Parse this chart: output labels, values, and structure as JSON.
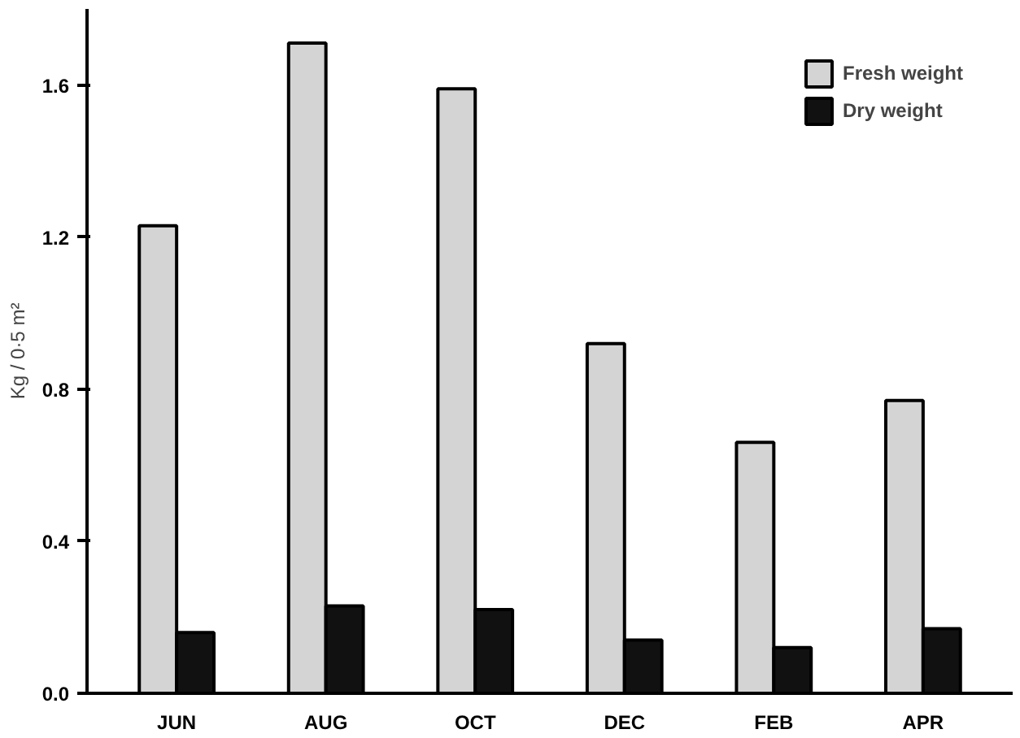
{
  "chart_data": {
    "type": "bar",
    "ylabel": "Kg / 0·5 m²",
    "categories": [
      "JUN",
      "AUG",
      "OCT",
      "DEC",
      "FEB",
      "APR"
    ],
    "series": [
      {
        "name": "Fresh weight",
        "color": "#d4d4d4",
        "values": [
          1.23,
          1.71,
          1.59,
          0.92,
          0.66,
          0.77
        ]
      },
      {
        "name": "Dry weight",
        "color": "#111111",
        "values": [
          0.16,
          0.23,
          0.22,
          0.14,
          0.12,
          0.17
        ]
      }
    ],
    "ylim": [
      0,
      1.8
    ],
    "yticks": [
      {
        "value": 0,
        "label": "0.0"
      },
      0.4,
      0.8,
      1.2,
      1.6
    ],
    "grid": false,
    "legend": "top right"
  }
}
